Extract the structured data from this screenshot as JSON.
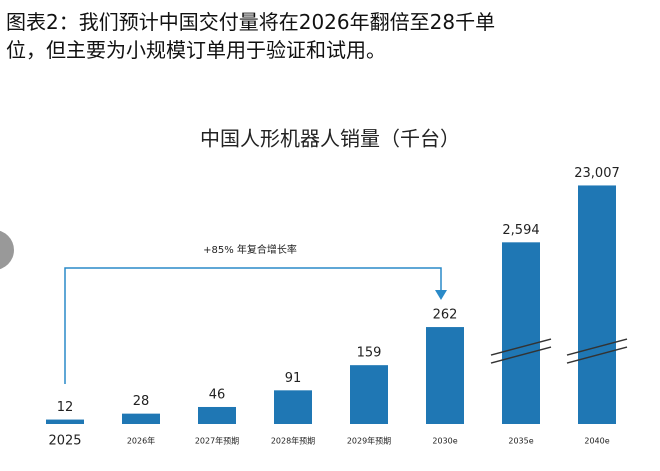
{
  "caption": [
    "图表2：我们预计中国交付量将在2026年翻倍至28千单",
    "位，但主要为小规模订单用于验证和试用。"
  ],
  "chart_data": {
    "type": "bar",
    "title": "中国人形机器人销量（千台）",
    "annotation": "+85% 年复合增长率",
    "categories": [
      "2025",
      "2026年",
      "2027年预期",
      "2028年预期",
      "2029年预期",
      "2030e",
      "2035e",
      "2040e"
    ],
    "values": [
      12,
      28,
      46,
      91,
      159,
      262,
      2594,
      23007
    ],
    "value_labels": [
      "12",
      "28",
      "46",
      "91",
      "159",
      "262",
      "2,594",
      "23,007"
    ],
    "color": "#1f77b4",
    "axis_break": true
  }
}
